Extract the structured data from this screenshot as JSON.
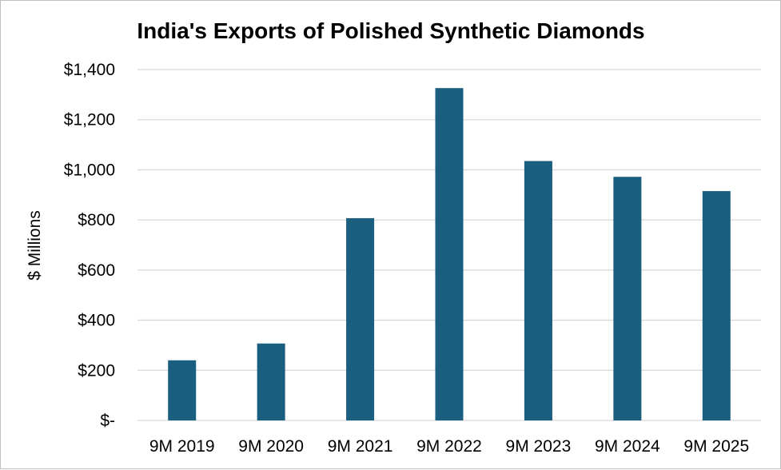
{
  "chart_data": {
    "type": "bar",
    "title": "India's Exports of Polished Synthetic Diamonds",
    "xlabel": "",
    "ylabel": "$ Millions",
    "categories": [
      "9M 2019",
      "9M 2020",
      "9M 2021",
      "9M 2022",
      "9M 2023",
      "9M 2024",
      "9M 2025"
    ],
    "values": [
      240,
      307,
      807,
      1326,
      1035,
      972,
      915
    ],
    "ylim": [
      0,
      1400
    ],
    "y_ticks": [
      0,
      200,
      400,
      600,
      800,
      1000,
      1200,
      1400
    ],
    "y_tick_labels": [
      "$-",
      "$200",
      "$400",
      "$600",
      "$800",
      "$1,000",
      "$1,200",
      "$1,400"
    ],
    "bar_color": "#1a5e80",
    "grid": true,
    "legend": "none"
  }
}
